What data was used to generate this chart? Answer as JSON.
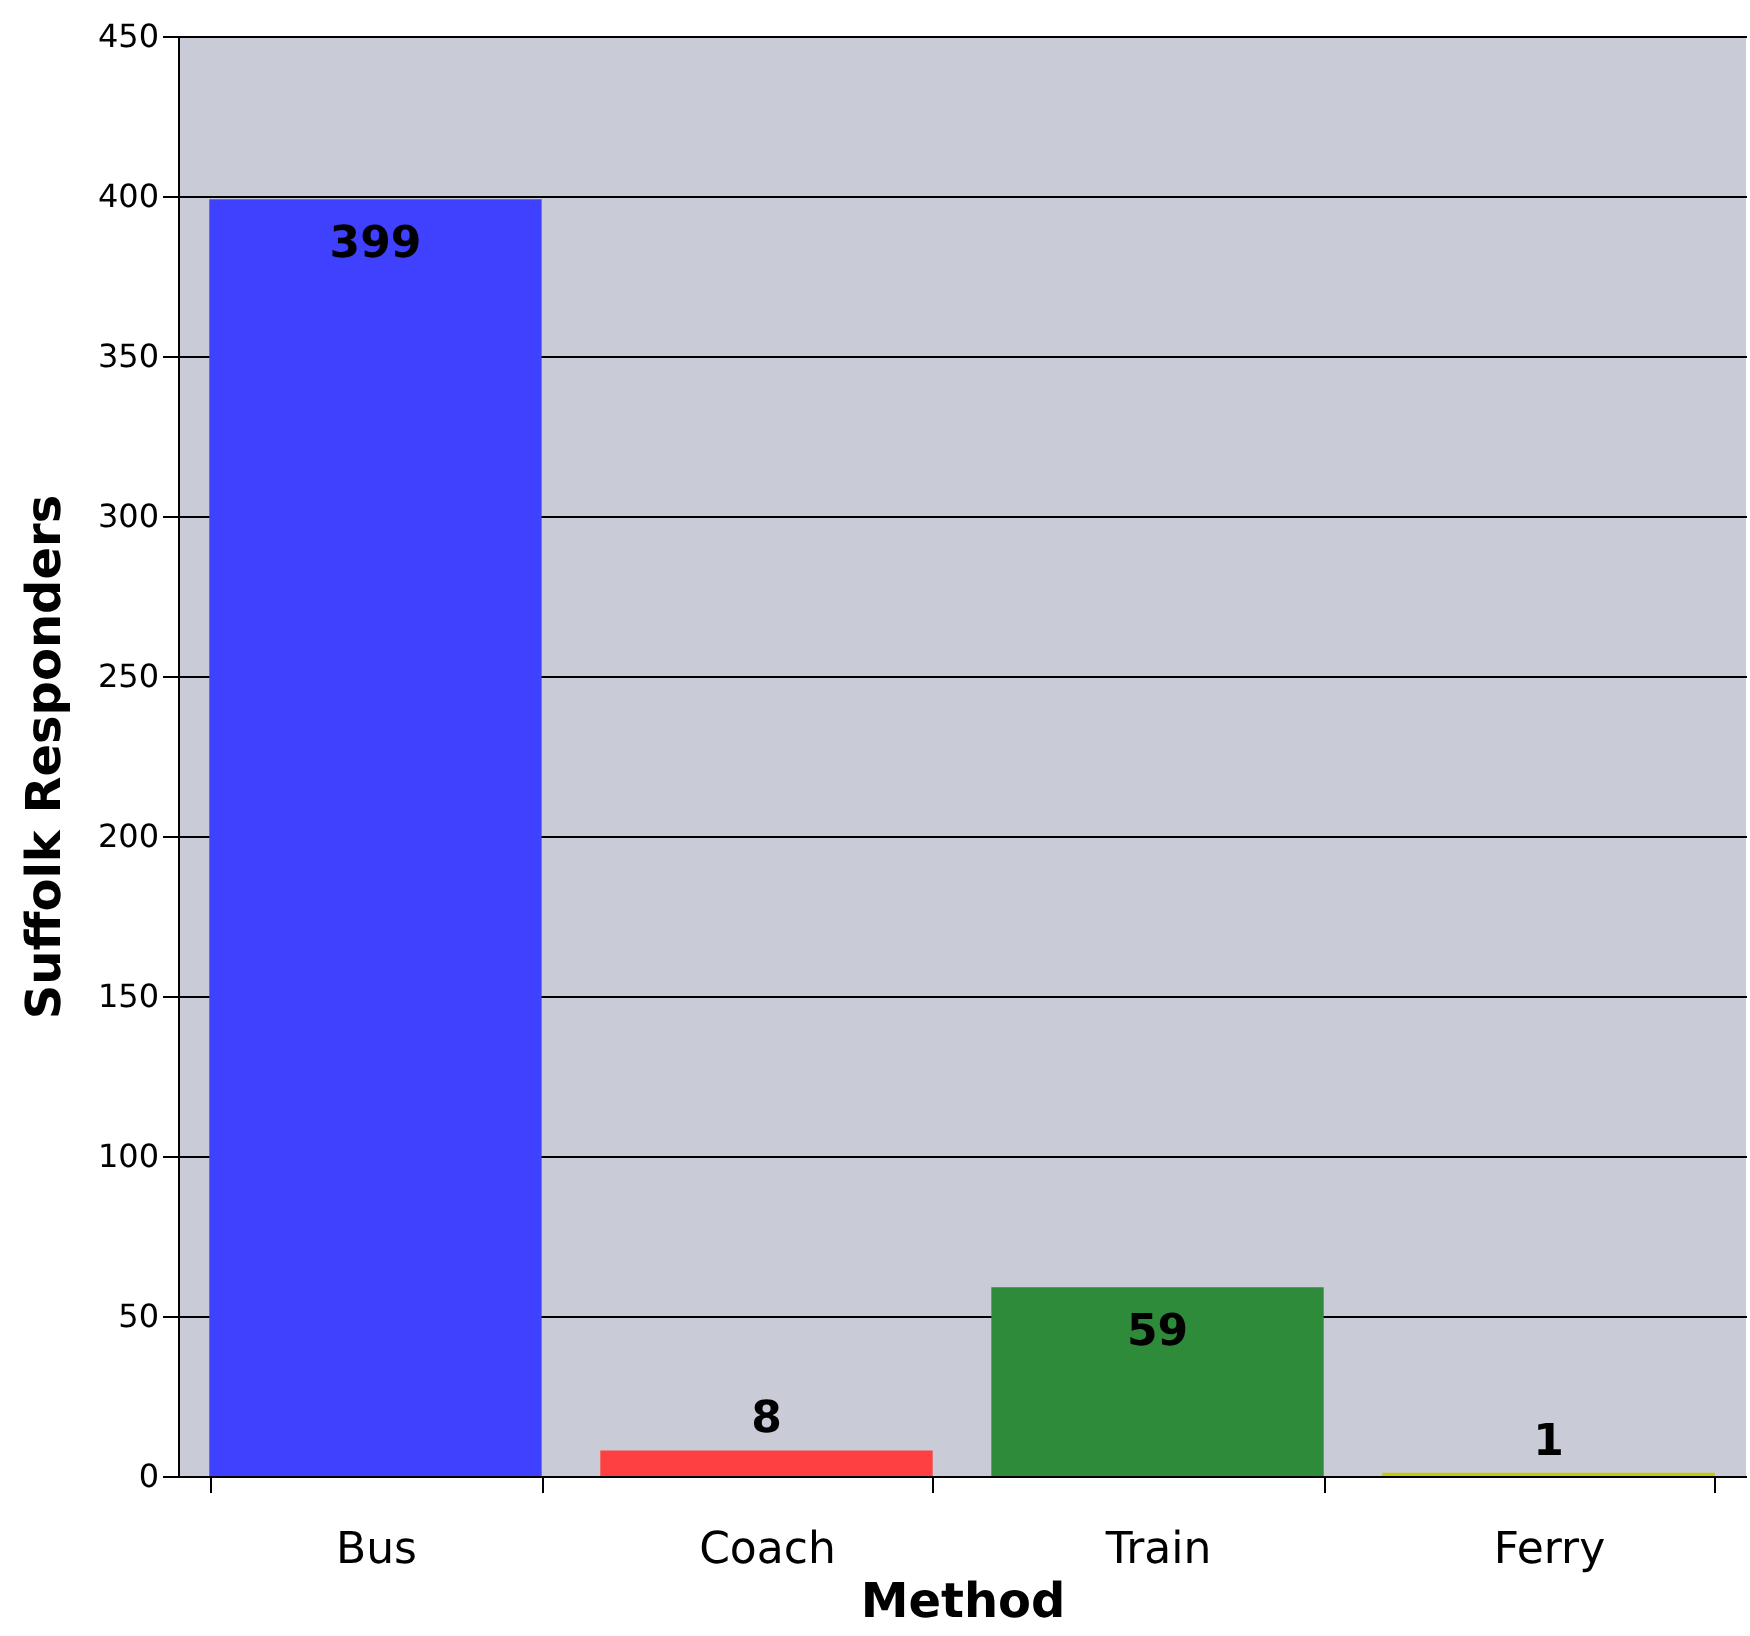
{
  "chart_data": {
    "type": "bar",
    "xlabel": "Method",
    "ylabel": "Suffolk Responders",
    "categories": [
      "Bus",
      "Coach",
      "Train",
      "Ferry"
    ],
    "values": [
      399,
      8,
      59,
      1
    ],
    "colors": [
      "#4040ff",
      "#ff4040",
      "#2e8b3a",
      "#c8c800"
    ],
    "ylim": [
      0,
      450
    ],
    "yticks": [
      0,
      50,
      100,
      150,
      200,
      250,
      300,
      350,
      400,
      450
    ],
    "grid": "y",
    "data_labels": true
  }
}
